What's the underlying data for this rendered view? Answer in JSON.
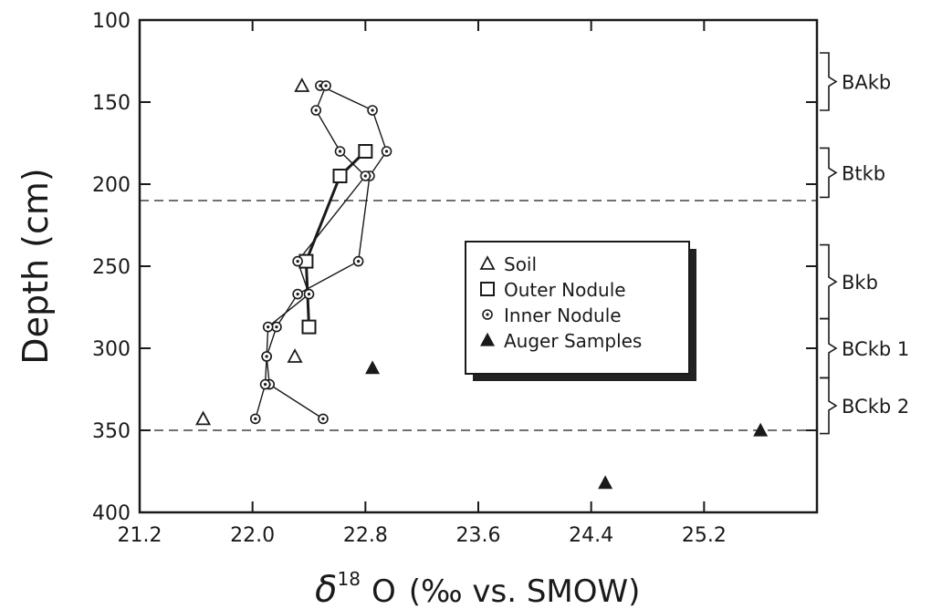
{
  "chart_data": {
    "type": "scatter",
    "xlabel_symbol": "δ",
    "xlabel_superscript": "18",
    "xlabel_main": "O",
    "xlabel_unit": "(‰ vs. SMOW)",
    "ylabel": "Depth (cm)",
    "xlim": [
      21.2,
      26.0
    ],
    "ylim": [
      400,
      100
    ],
    "y_inverted": true,
    "x_ticks": [
      "21.2",
      "22.0",
      "22.8",
      "23.6",
      "24.4",
      "25.2"
    ],
    "x_tick_values": [
      21.2,
      22.0,
      22.8,
      23.6,
      24.4,
      25.2
    ],
    "y_ticks": [
      "100",
      "150",
      "200",
      "250",
      "300",
      "350",
      "400"
    ],
    "y_tick_values": [
      100,
      150,
      200,
      250,
      300,
      350,
      400
    ],
    "grid": false,
    "legend_position": "center-right",
    "series": [
      {
        "name": "Soil",
        "marker": "open-triangle",
        "connected": false,
        "points": [
          [
            22.35,
            140
          ],
          [
            22.3,
            305
          ],
          [
            21.65,
            343
          ]
        ]
      },
      {
        "name": "Outer Nodule",
        "marker": "open-square",
        "connected": true,
        "points": [
          [
            22.8,
            180
          ],
          [
            22.62,
            195
          ],
          [
            22.38,
            247
          ],
          [
            22.4,
            287
          ]
        ]
      },
      {
        "name": "Inner Nodule",
        "marker": "dotted-circle",
        "connected_paths": [
          [
            [
              22.48,
              140
            ],
            [
              22.85,
              155
            ],
            [
              22.95,
              180
            ],
            [
              22.83,
              195
            ],
            [
              22.75,
              247
            ],
            [
              22.32,
              267
            ],
            [
              22.17,
              287
            ],
            [
              22.1,
              305
            ],
            [
              22.12,
              322
            ],
            [
              22.5,
              343
            ]
          ],
          [
            [
              22.52,
              140
            ],
            [
              22.45,
              155
            ],
            [
              22.62,
              180
            ],
            [
              22.8,
              195
            ],
            [
              22.32,
              247
            ],
            [
              22.4,
              267
            ],
            [
              22.11,
              287
            ],
            [
              22.1,
              305
            ],
            [
              22.09,
              322
            ],
            [
              22.02,
              343
            ]
          ]
        ]
      },
      {
        "name": "Auger Samples",
        "marker": "filled-triangle",
        "connected": false,
        "points": [
          [
            22.85,
            312
          ],
          [
            25.6,
            350
          ],
          [
            24.5,
            382
          ]
        ]
      }
    ],
    "reference_lines": [
      {
        "y": 210,
        "style": "dashed"
      },
      {
        "y": 350,
        "style": "dashed"
      }
    ],
    "horizon_labels": [
      {
        "label": "BAkb",
        "top": 120,
        "bottom": 155
      },
      {
        "label": "Btkb",
        "top": 178,
        "bottom": 208
      },
      {
        "label": "Bkb",
        "top": 237,
        "bottom": 282
      },
      {
        "label": "BCkb 1",
        "top": 282,
        "bottom": 318
      },
      {
        "label": "BCkb 2",
        "top": 318,
        "bottom": 352
      }
    ]
  },
  "colors": {
    "ink": "#1a1a1a",
    "background": "#ffffff",
    "legend_shadow": "#222222"
  }
}
